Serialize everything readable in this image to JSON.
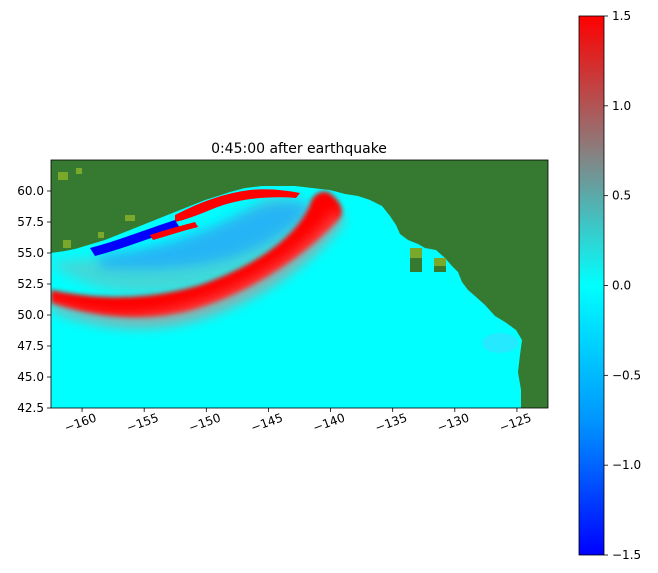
{
  "plot": {
    "title": "0:45:00 after earthquake",
    "xlim": [
      -162.5,
      -122.5
    ],
    "ylim": [
      42.5,
      62.5
    ],
    "x_ticks": [
      -160,
      -155,
      -150,
      -145,
      -140,
      -135,
      -130,
      -125
    ],
    "x_tick_labels": [
      "−160",
      "−155",
      "−150",
      "−145",
      "−140",
      "−135",
      "−130",
      "−125"
    ],
    "y_ticks": [
      60.0,
      57.5,
      55.0,
      52.5,
      50.0,
      47.5,
      45.0,
      42.5
    ],
    "y_tick_labels": [
      "60.0",
      "57.5",
      "55.0",
      "52.5",
      "50.0",
      "47.5",
      "45.0",
      "42.5"
    ],
    "colors": {
      "land": "#367a31",
      "ocean": "#00ffff",
      "wave_positive": "#ff0000",
      "wave_negative": "#0000ff"
    }
  },
  "colorbar": {
    "range": [
      -1.5,
      1.5
    ],
    "ticks": [
      1.5,
      1.0,
      0.5,
      0.0,
      -0.5,
      -1.0,
      -1.5
    ],
    "tick_labels": [
      "1.5",
      "1.0",
      "0.5",
      "0.0",
      "−0.5",
      "−1.0",
      "−1.5"
    ],
    "colormap": [
      "#0000ff",
      "#00a0ff",
      "#00ffff",
      "#8a7e7e",
      "#ff0000"
    ]
  }
}
